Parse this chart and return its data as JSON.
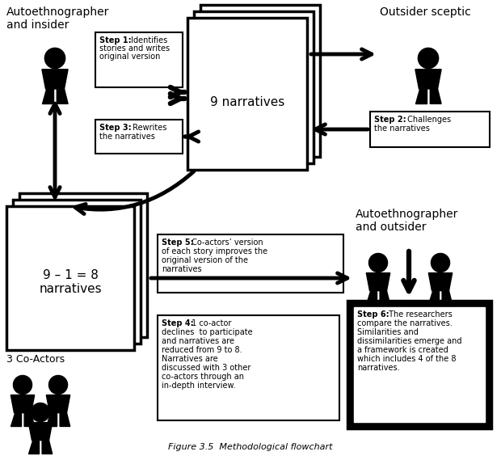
{
  "background_color": "#ffffff",
  "figure_size": [
    6.2,
    5.69
  ],
  "dpi": 100,
  "title": "Figure 3.5  Methodological flowchart",
  "top_left_label_1": "Autoethnographer",
  "top_left_label_2": "and insider",
  "outsider_sceptic_label": "Outsider sceptic",
  "autoethnographer_outsider_label_1": "Autoethnographer",
  "autoethnographer_outsider_label_2": "and outsider",
  "co_actors_label": "3 Co-Actors",
  "narratives_9_label": "9 narratives",
  "narratives_8_label": "9 – 1 = 8\nnarratives",
  "step1_bold": "Step 1:",
  "step1_rest": " Identifies\nstories and writes\noriginal version",
  "step2_bold": "Step 2:",
  "step2_rest": " Challenges\nthe narratives",
  "step3_bold": "Step 3:",
  "step3_rest": " Rewrites\nthe narratives",
  "step4_bold": "Step 4:",
  "step4_rest": " 1 co-actor\ndeclines  to participate\nand narratives are\nreduced from 9 to 8.\nNarratives are\ndiscussed with 3 other\nco-actors through an\nin-depth interview.",
  "step5_bold": "Step 5:",
  "step5_rest": " Co-actors’ version\nof each story improves the\noriginal version of the\nnarratives",
  "step6_bold": "Step 6:",
  "step6_rest": " The researchers\ncompare the narratives.\nSimilarities and\ndissimilarities emerge and\na framework is created\nwhich includes 4 of the 8\nnarratives."
}
